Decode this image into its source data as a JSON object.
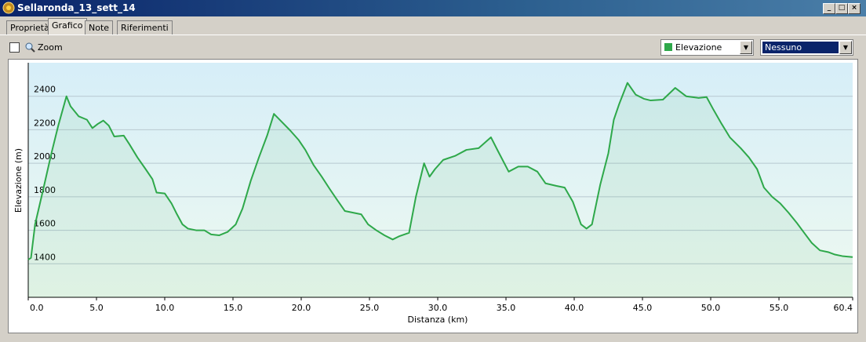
{
  "window": {
    "title": "Sellaronda_13_sett_14",
    "tabs": [
      "Proprietà",
      "Grafico",
      "Note",
      "Riferimenti"
    ],
    "zoom_label": "Zoom",
    "series_select": "Elevazione",
    "compare_select": "Nessuno"
  },
  "chart_data": {
    "type": "line",
    "x_label": "Distanza  (km)",
    "y_label": "Elevazione (m)",
    "color": "#2ea84a",
    "grid": true,
    "x": [
      0,
      0.2,
      0.5,
      1.1,
      1.7,
      2.2,
      2.8,
      3.1,
      3.7,
      4.3,
      4.7,
      5.1,
      5.5,
      5.9,
      6.3,
      7.0,
      7.4,
      8.0,
      8.6,
      9.1,
      9.4,
      10.0,
      10.5,
      10.9,
      11.3,
      11.7,
      12.3,
      12.9,
      13.4,
      14.0,
      14.6,
      15.2,
      15.7,
      16.3,
      16.9,
      17.5,
      18.0,
      18.6,
      19.2,
      19.8,
      20.3,
      20.9,
      21.5,
      22.1,
      22.6,
      23.2,
      23.8,
      24.4,
      24.9,
      25.5,
      26.1,
      26.7,
      27.2,
      27.9,
      28.4,
      29.0,
      29.4,
      29.8,
      30.4,
      31.3,
      32.1,
      33.0,
      33.9,
      34.4,
      35.2,
      35.9,
      36.6,
      37.3,
      37.9,
      38.7,
      39.3,
      39.9,
      40.5,
      40.9,
      41.3,
      41.9,
      42.5,
      42.9,
      43.3,
      43.9,
      44.5,
      45.1,
      45.6,
      46.5,
      47.4,
      48.2,
      49.1,
      49.7,
      50.2,
      50.8,
      51.4,
      52.2,
      52.8,
      53.4,
      53.9,
      54.5,
      55.1,
      55.7,
      56.3,
      56.8,
      57.4,
      58.0,
      58.6,
      59.1,
      59.7,
      60.4
    ],
    "values": [
      1425,
      1435,
      1635,
      1845,
      2060,
      2225,
      2400,
      2340,
      2280,
      2260,
      2210,
      2235,
      2255,
      2225,
      2160,
      2165,
      2115,
      2035,
      1965,
      1905,
      1825,
      1820,
      1760,
      1695,
      1635,
      1610,
      1600,
      1600,
      1575,
      1570,
      1590,
      1635,
      1730,
      1895,
      2035,
      2165,
      2295,
      2245,
      2195,
      2140,
      2080,
      1990,
      1920,
      1845,
      1785,
      1715,
      1705,
      1695,
      1635,
      1600,
      1570,
      1545,
      1565,
      1585,
      1800,
      2000,
      1920,
      1965,
      2020,
      2045,
      2080,
      2090,
      2155,
      2075,
      1950,
      1980,
      1980,
      1950,
      1880,
      1865,
      1855,
      1770,
      1635,
      1610,
      1635,
      1870,
      2060,
      2260,
      2355,
      2480,
      2410,
      2385,
      2375,
      2380,
      2450,
      2400,
      2390,
      2395,
      2320,
      2235,
      2155,
      2090,
      2035,
      1965,
      1855,
      1800,
      1760,
      1705,
      1645,
      1590,
      1525,
      1480,
      1470,
      1455,
      1445,
      1440
    ],
    "xlim": [
      0,
      60.4
    ],
    "ylim": [
      1200,
      2600
    ],
    "xticks": [
      {
        "value": 0,
        "label": "0.0"
      },
      {
        "value": 5,
        "label": "5.0"
      },
      {
        "value": 10,
        "label": "10.0"
      },
      {
        "value": 15,
        "label": "15.0"
      },
      {
        "value": 20,
        "label": "20.0"
      },
      {
        "value": 25,
        "label": "25.0"
      },
      {
        "value": 30,
        "label": "30.0"
      },
      {
        "value": 35,
        "label": "35.0"
      },
      {
        "value": 40,
        "label": "40.0"
      },
      {
        "value": 45,
        "label": "45.0"
      },
      {
        "value": 50,
        "label": "50.0"
      },
      {
        "value": 55,
        "label": "55.0"
      },
      60.4
    ],
    "yticks": [
      1400,
      1600,
      1800,
      2000,
      2200,
      2400
    ]
  }
}
